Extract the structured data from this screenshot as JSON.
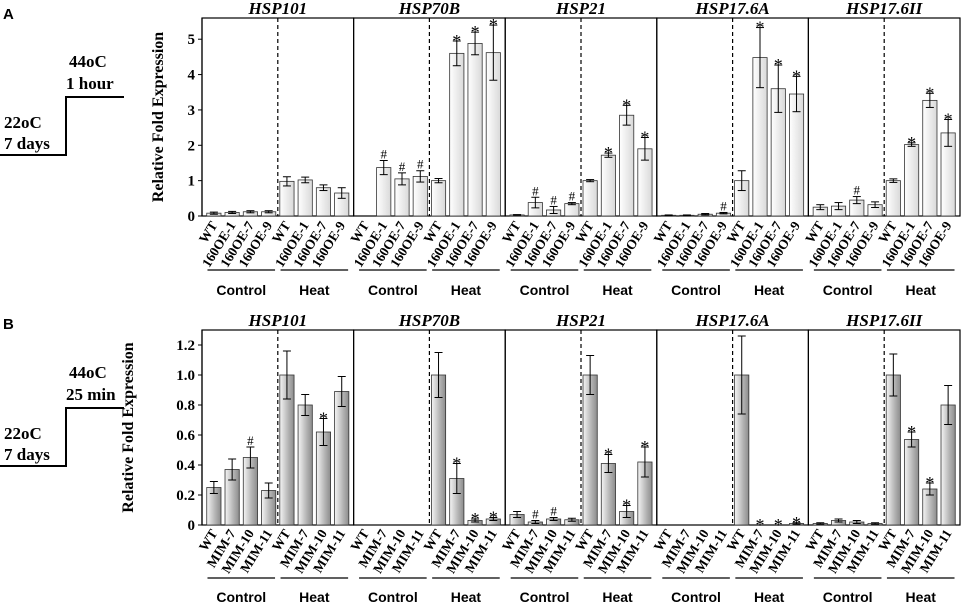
{
  "figure": {
    "panelA": {
      "letter": "A",
      "high_temp": "44oC",
      "high_time": "1 hour",
      "low_temp": "22oC",
      "low_time": "7 days"
    },
    "panelB": {
      "letter": "B",
      "high_temp": "44oC",
      "high_time": "25 min",
      "low_temp": "22oC",
      "low_time": "7 days"
    },
    "group_labels": {
      "control": "Control",
      "heat": "Heat"
    }
  },
  "colors": {
    "panelA_bar": "#f2f2f2",
    "panelB_bar": "#a6a6a6",
    "axis": "#000000"
  },
  "chart_data": [
    {
      "type": "bar",
      "panel": "A",
      "ylabel": "Relative Fold Expression",
      "ylim": [
        0,
        5.6
      ],
      "yticks": [
        0,
        1,
        2,
        3,
        4,
        5
      ],
      "ytick_labels": [
        "0",
        "1",
        "2",
        "3",
        "4",
        "5"
      ],
      "categories": [
        "WT",
        "160OE-1",
        "160OE-7",
        "160OE-9",
        "WT",
        "160OE-1",
        "160OE-7",
        "160OE-9"
      ],
      "groups": [
        "Control",
        "Control",
        "Control",
        "Control",
        "Heat",
        "Heat",
        "Heat",
        "Heat"
      ],
      "series": [
        {
          "name": "HSP101",
          "values": [
            0.08,
            0.1,
            0.12,
            0.12,
            0.98,
            1.02,
            0.8,
            0.65
          ],
          "errors": [
            0.03,
            0.03,
            0.03,
            0.03,
            0.13,
            0.08,
            0.08,
            0.15
          ],
          "marks": [
            "",
            "",
            "",
            "",
            "",
            "",
            "",
            ""
          ]
        },
        {
          "name": "HSP70B",
          "values": [
            0,
            1.37,
            1.05,
            1.12,
            1.0,
            4.6,
            4.88,
            4.62
          ],
          "errors": [
            0,
            0.2,
            0.17,
            0.16,
            0.06,
            0.35,
            0.32,
            0.78
          ],
          "marks": [
            "",
            "#",
            "#",
            "#",
            "",
            "*",
            "*",
            "*"
          ]
        },
        {
          "name": "HSP21",
          "values": [
            0.03,
            0.38,
            0.17,
            0.35,
            1.0,
            1.72,
            2.85,
            1.9
          ],
          "errors": [
            0.01,
            0.15,
            0.1,
            0.03,
            0.03,
            0.06,
            0.28,
            0.32
          ],
          "marks": [
            "",
            "#",
            "#",
            "#",
            "",
            "*",
            "*",
            "*"
          ]
        },
        {
          "name": "HSP17.6A",
          "values": [
            0.02,
            0.02,
            0.05,
            0.08,
            1.0,
            4.48,
            3.6,
            3.45
          ],
          "errors": [
            0.01,
            0.01,
            0.02,
            0.02,
            0.28,
            0.85,
            0.67,
            0.5
          ],
          "marks": [
            "",
            "",
            "",
            "#",
            "",
            "*",
            "*",
            "*"
          ]
        },
        {
          "name": "HSP17.6II",
          "values": [
            0.25,
            0.28,
            0.45,
            0.32,
            1.0,
            2.02,
            3.27,
            2.35
          ],
          "errors": [
            0.07,
            0.1,
            0.1,
            0.08,
            0.05,
            0.05,
            0.2,
            0.38
          ],
          "marks": [
            "",
            "",
            "#",
            "",
            "",
            "*",
            "*",
            "*"
          ]
        }
      ]
    },
    {
      "type": "bar",
      "panel": "B",
      "ylabel": "Relative Fold Expression",
      "ylim": [
        0,
        1.3
      ],
      "yticks": [
        0,
        0.2,
        0.4,
        0.6,
        0.8,
        1.0,
        1.2
      ],
      "ytick_labels": [
        "0",
        "0.2",
        "0.4",
        "0.6",
        "0.8",
        "1.0",
        "1.2"
      ],
      "categories": [
        "WT",
        "MIM-7",
        "MIM-10",
        "MIM-11",
        "WT",
        "MIM-7",
        "MIM-10",
        "MIM-11"
      ],
      "groups": [
        "Control",
        "Control",
        "Control",
        "Control",
        "Heat",
        "Heat",
        "Heat",
        "Heat"
      ],
      "series": [
        {
          "name": "HSP101",
          "values": [
            0.25,
            0.37,
            0.45,
            0.23,
            1.0,
            0.8,
            0.62,
            0.89
          ],
          "errors": [
            0.04,
            0.07,
            0.07,
            0.05,
            0.16,
            0.07,
            0.09,
            0.1
          ],
          "marks": [
            "",
            "",
            "#",
            "",
            "",
            "",
            "*",
            ""
          ]
        },
        {
          "name": "HSP70B",
          "values": [
            0,
            0,
            0,
            0,
            1.0,
            0.31,
            0.03,
            0.04
          ],
          "errors": [
            0,
            0,
            0,
            0,
            0.15,
            0.1,
            0.01,
            0.01
          ],
          "marks": [
            "",
            "",
            "",
            "",
            "",
            "*",
            "*",
            "*"
          ]
        },
        {
          "name": "HSP21",
          "values": [
            0.07,
            0.02,
            0.04,
            0.035,
            1.0,
            0.41,
            0.09,
            0.42
          ],
          "errors": [
            0.02,
            0.01,
            0.01,
            0.01,
            0.13,
            0.06,
            0.04,
            0.1
          ],
          "marks": [
            "",
            "#",
            "#",
            "",
            "",
            "*",
            "*",
            "*"
          ]
        },
        {
          "name": "HSP17.6A",
          "values": [
            0,
            0,
            0,
            0,
            1.0,
            0,
            0,
            0.01
          ],
          "errors": [
            0,
            0,
            0,
            0,
            0.26,
            0,
            0,
            0.005
          ],
          "marks": [
            "",
            "",
            "",
            "",
            "",
            "*",
            "*",
            "*"
          ]
        },
        {
          "name": "HSP17.6II",
          "values": [
            0.01,
            0.03,
            0.02,
            0.01,
            1.0,
            0.57,
            0.24,
            0.8
          ],
          "errors": [
            0.005,
            0.01,
            0.01,
            0.005,
            0.14,
            0.05,
            0.04,
            0.13
          ],
          "marks": [
            "",
            "",
            "",
            "",
            "",
            "*",
            "*",
            ""
          ]
        }
      ]
    }
  ]
}
